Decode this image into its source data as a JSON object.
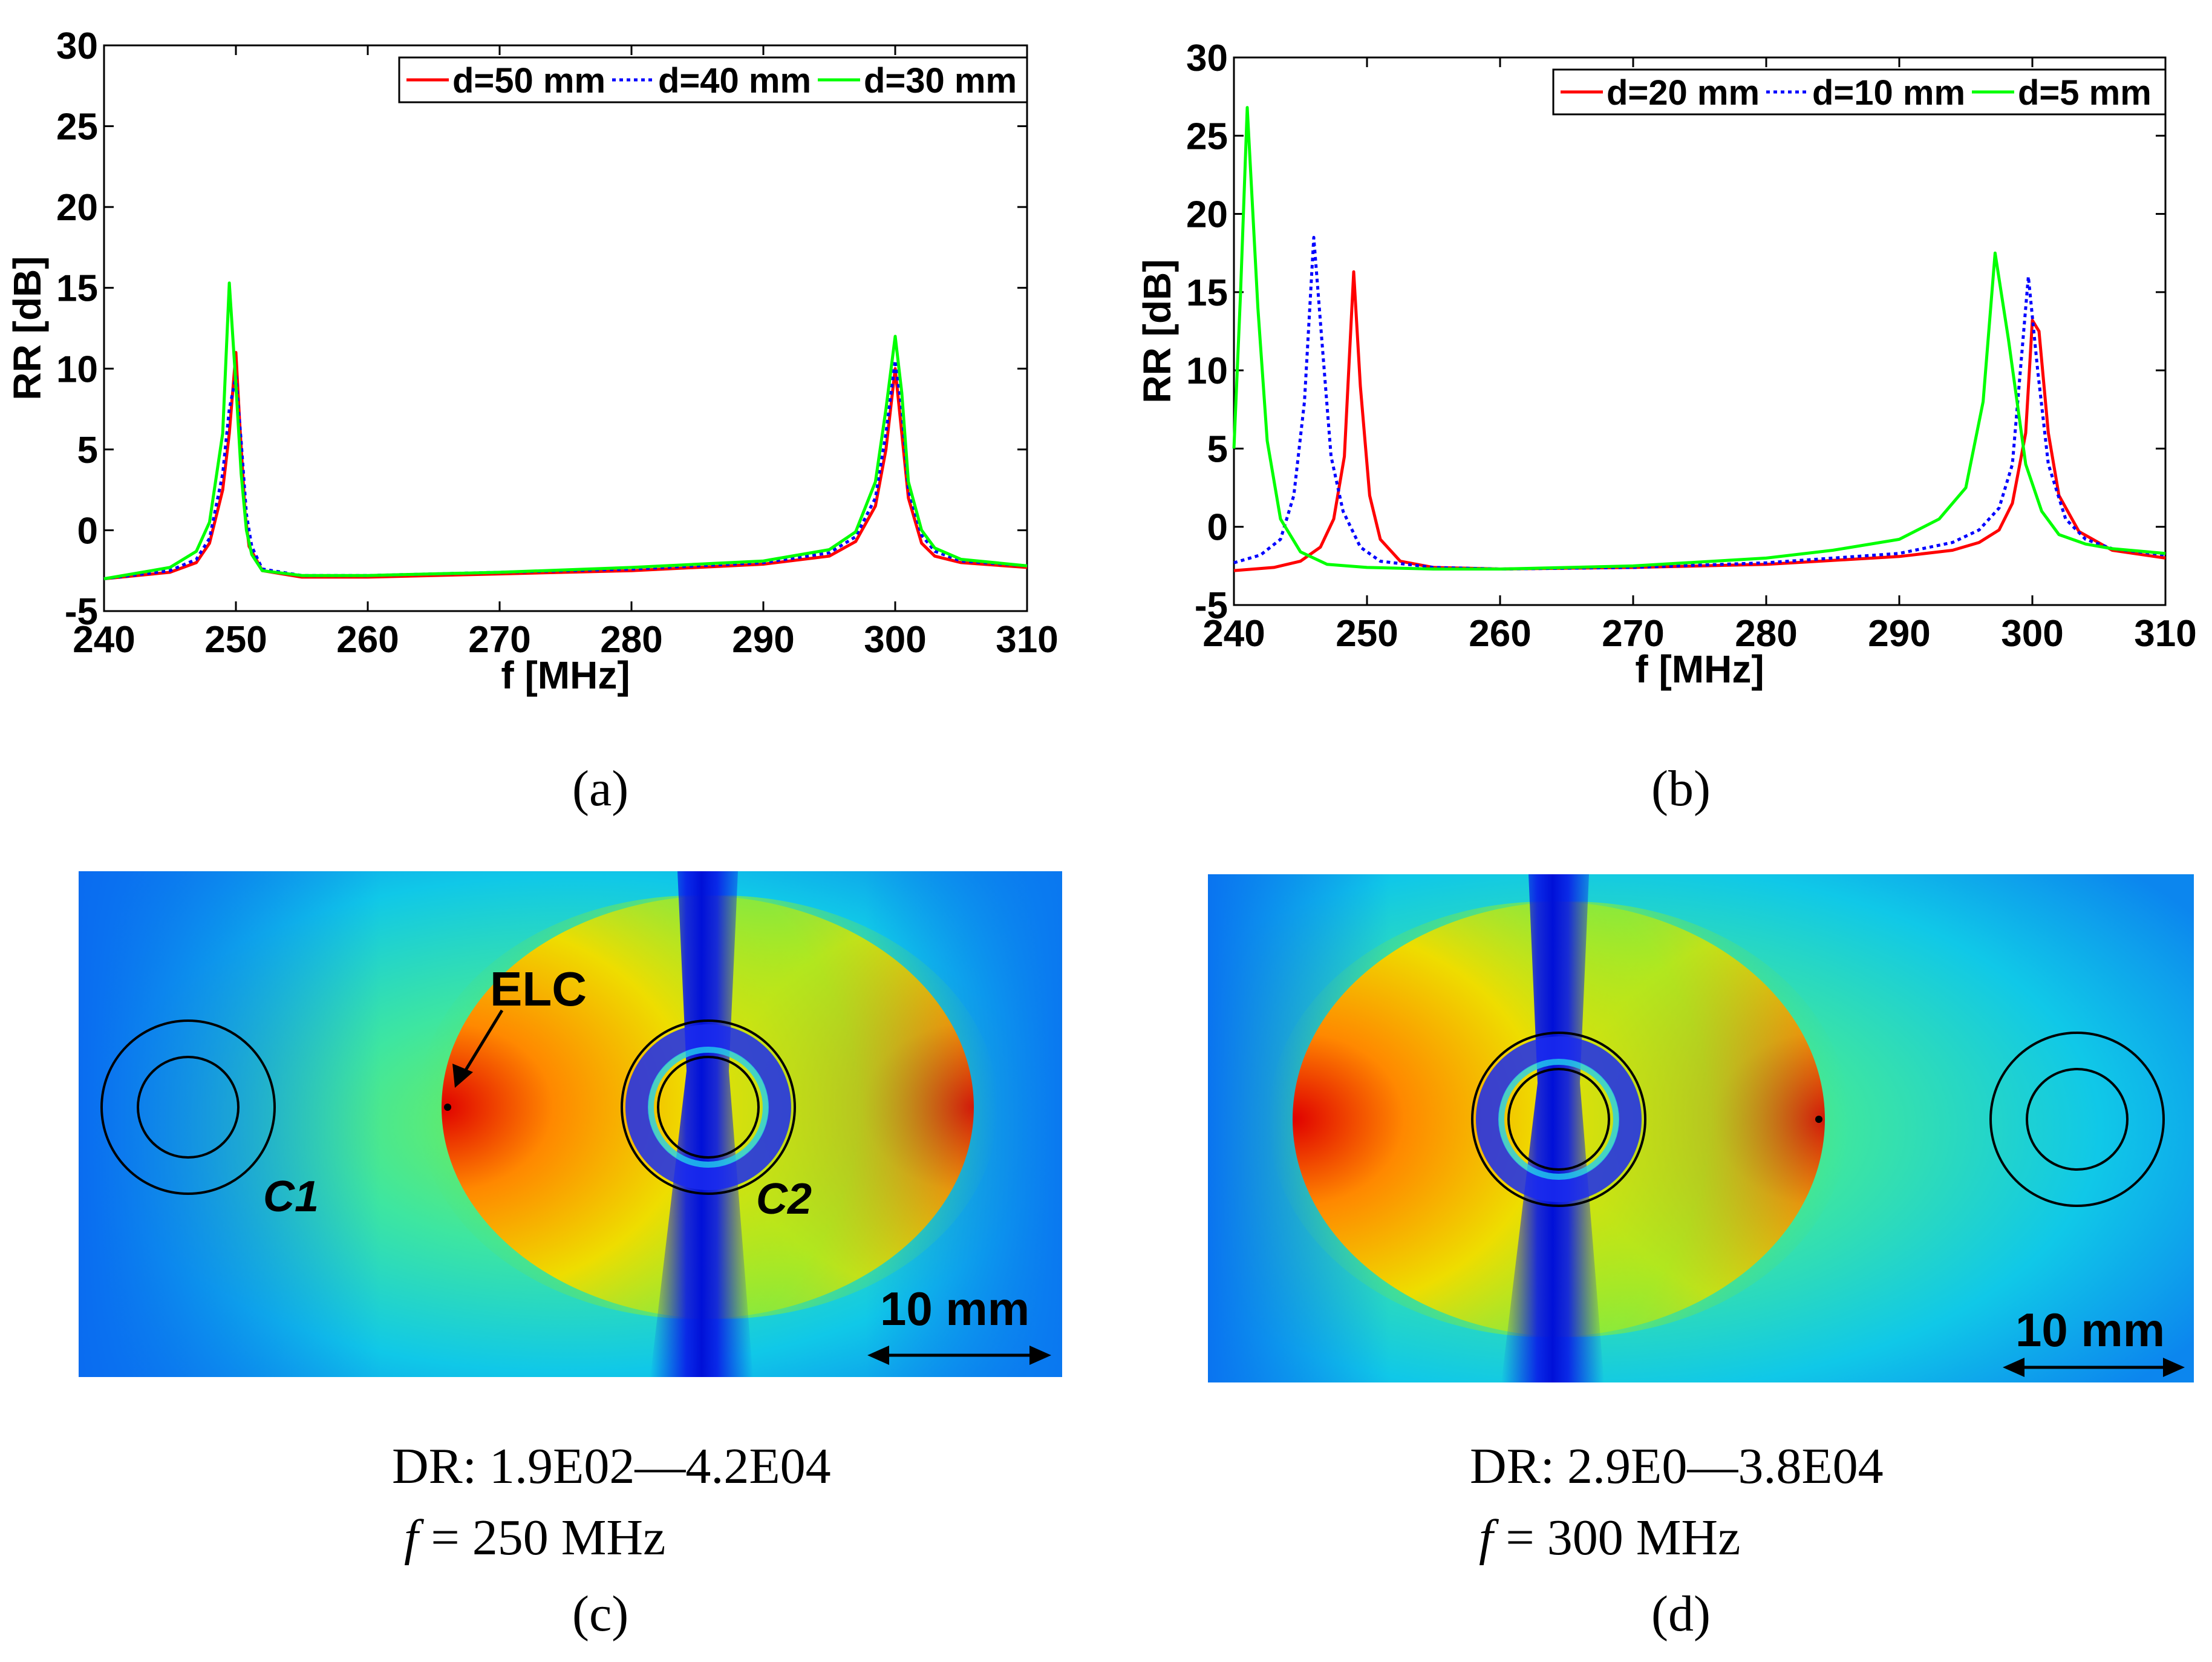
{
  "chart_data": [
    {
      "id": "a",
      "type": "line",
      "panel_label": "(a)",
      "xlabel": "f [MHz]",
      "ylabel": "RR [dB]",
      "xlim": [
        240,
        310
      ],
      "ylim": [
        -5,
        30
      ],
      "xticks": [
        "240",
        "250",
        "260",
        "270",
        "280",
        "290",
        "300",
        "310"
      ],
      "yticks": [
        "-5",
        "0",
        "5",
        "10",
        "15",
        "20",
        "25",
        "30"
      ],
      "legend_position": "top-right",
      "series": [
        {
          "name": "d=50 mm",
          "color": "#ff0000",
          "style": "solid",
          "x": [
            240,
            245,
            247,
            248,
            249,
            249.5,
            250,
            250.3,
            250.7,
            251,
            252,
            255,
            260,
            270,
            280,
            290,
            295,
            297,
            298.5,
            299.3,
            300,
            300.5,
            301,
            302,
            303,
            305,
            310
          ],
          "y": [
            -3,
            -2.6,
            -2.0,
            -0.8,
            2.5,
            6.0,
            11.0,
            6.5,
            1.0,
            -1.0,
            -2.5,
            -2.9,
            -2.9,
            -2.7,
            -2.5,
            -2.1,
            -1.6,
            -0.7,
            1.5,
            5.0,
            10.0,
            6.0,
            2.0,
            -0.8,
            -1.6,
            -2.0,
            -2.3
          ]
        },
        {
          "name": "d=40 mm",
          "color": "#0000ff",
          "style": "dotted",
          "x": [
            240,
            245,
            247,
            248,
            249,
            249.5,
            250,
            250.4,
            250.8,
            251.2,
            252,
            255,
            260,
            270,
            280,
            290,
            295,
            297,
            298.5,
            299.3,
            300,
            300.5,
            301,
            302,
            303,
            305,
            310
          ],
          "y": [
            -3,
            -2.5,
            -1.8,
            -0.5,
            3.5,
            7.5,
            9.5,
            5.5,
            1.0,
            -1.0,
            -2.4,
            -2.8,
            -2.8,
            -2.6,
            -2.4,
            -2.0,
            -1.4,
            -0.4,
            2.0,
            6.0,
            10.5,
            7.5,
            2.5,
            -0.3,
            -1.3,
            -1.9,
            -2.2
          ]
        },
        {
          "name": "d=30 mm",
          "color": "#00ff00",
          "style": "solid",
          "x": [
            240,
            245,
            247,
            248,
            249,
            249.5,
            250,
            250.4,
            250.8,
            251.2,
            252,
            255,
            260,
            270,
            280,
            290,
            295,
            297,
            298.5,
            299.3,
            300,
            300.5,
            301,
            302,
            303,
            305,
            310
          ],
          "y": [
            -3,
            -2.3,
            -1.3,
            0.5,
            6.0,
            15.3,
            9.0,
            3.5,
            0.0,
            -1.5,
            -2.5,
            -2.8,
            -2.8,
            -2.6,
            -2.3,
            -1.9,
            -1.2,
            -0.1,
            3.0,
            7.5,
            12.0,
            8.5,
            3.0,
            0.0,
            -1.1,
            -1.8,
            -2.2
          ]
        }
      ]
    },
    {
      "id": "b",
      "type": "line",
      "panel_label": "(b)",
      "xlabel": "f [MHz]",
      "ylabel": "RR [dB]",
      "xlim": [
        240,
        310
      ],
      "ylim": [
        -5,
        30
      ],
      "xticks": [
        "240",
        "250",
        "260",
        "270",
        "280",
        "290",
        "300",
        "310"
      ],
      "yticks": [
        "-5",
        "0",
        "5",
        "10",
        "15",
        "20",
        "25",
        "30"
      ],
      "legend_position": "top-right",
      "series": [
        {
          "name": "d=20 mm",
          "color": "#ff0000",
          "style": "solid",
          "x": [
            240,
            243,
            245,
            246.5,
            247.5,
            248.3,
            249,
            249.5,
            250.2,
            251,
            252.5,
            255,
            260,
            270,
            280,
            290,
            294,
            296,
            297.5,
            298.5,
            299.5,
            300,
            300.5,
            301.2,
            302,
            303.5,
            306,
            310
          ],
          "y": [
            -2.8,
            -2.6,
            -2.2,
            -1.3,
            0.5,
            4.5,
            16.3,
            9.0,
            2.0,
            -0.8,
            -2.2,
            -2.6,
            -2.7,
            -2.6,
            -2.4,
            -1.9,
            -1.5,
            -1.0,
            -0.2,
            1.5,
            6.0,
            13.2,
            12.5,
            6.0,
            2.0,
            -0.3,
            -1.5,
            -2.0
          ]
        },
        {
          "name": "d=10 mm",
          "color": "#0000ff",
          "style": "dotted",
          "x": [
            240,
            242,
            243.5,
            244.5,
            245.3,
            246,
            246.6,
            247.3,
            248.2,
            249.5,
            251,
            255,
            260,
            270,
            280,
            290,
            294,
            296,
            297.5,
            298.5,
            299.7,
            300.4,
            301.2,
            302.5,
            304,
            306,
            310
          ],
          "y": [
            -2.3,
            -1.8,
            -0.8,
            2.0,
            8.0,
            18.5,
            12.0,
            4.5,
            1.0,
            -1.3,
            -2.2,
            -2.6,
            -2.7,
            -2.6,
            -2.3,
            -1.7,
            -1.0,
            -0.2,
            1.2,
            4.0,
            16.0,
            10.0,
            4.0,
            0.5,
            -0.8,
            -1.4,
            -1.8
          ]
        },
        {
          "name": "d=5 mm",
          "color": "#00ff00",
          "style": "solid",
          "x": [
            240,
            240.5,
            241,
            241.8,
            242.5,
            243.5,
            245,
            247,
            250,
            255,
            260,
            270,
            280,
            285,
            290,
            293,
            295,
            296.3,
            297.2,
            298.2,
            299.5,
            300.7,
            302,
            304,
            306,
            310
          ],
          "y": [
            5.0,
            15.0,
            26.8,
            14.0,
            5.5,
            0.5,
            -1.6,
            -2.4,
            -2.6,
            -2.7,
            -2.7,
            -2.5,
            -2.0,
            -1.5,
            -0.8,
            0.5,
            2.5,
            8.0,
            17.5,
            12.0,
            4.0,
            1.0,
            -0.5,
            -1.1,
            -1.4,
            -1.7
          ]
        }
      ]
    }
  ],
  "panels": {
    "c": {
      "label": "(c)",
      "dr": "DR: 1.9E02—4.2E04",
      "f_symbol": "f",
      "f_value": "= 250 MHz",
      "annotations": {
        "elc": "ELC",
        "c1": "C1",
        "c2": "C2"
      },
      "scale_bar": "10 mm"
    },
    "d": {
      "label": "(d)",
      "dr": "DR: 2.9E0—3.8E04",
      "f_symbol": "f",
      "f_value": "= 300 MHz",
      "scale_bar": "10 mm"
    }
  },
  "colors": {
    "background": "#ffffff",
    "axis": "#000000",
    "field_low": "#0818e8",
    "field_high": "#e01010"
  }
}
